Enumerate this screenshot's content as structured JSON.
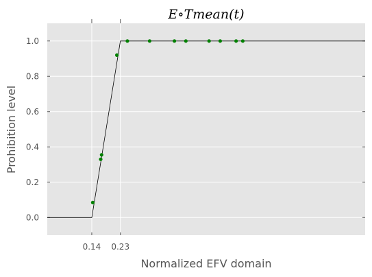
{
  "chart_data": {
    "type": "line",
    "title": "E∘Tmean(t)",
    "xlabel": "Normalized EFV domain",
    "ylabel": "Prohibition level",
    "xlim": [
      0,
      1
    ],
    "ylim": [
      -0.1,
      1.1
    ],
    "grid": true,
    "xticks": [
      0.14,
      0.23
    ],
    "xtick_labels": [
      "0.14",
      "0.23"
    ],
    "yticks": [
      0.0,
      0.2,
      0.4,
      0.6,
      0.8,
      1.0
    ],
    "ytick_labels": [
      "0.0",
      "0.2",
      "0.4",
      "0.6",
      "0.8",
      "1.0"
    ],
    "series": [
      {
        "kind": "line",
        "color": "#000000",
        "x": [
          0,
          0.14,
          0.23,
          1
        ],
        "y": [
          0,
          0,
          1,
          1
        ]
      },
      {
        "kind": "scatter",
        "color": "#008000",
        "x": [
          0.143,
          0.168,
          0.171,
          0.219,
          0.252,
          0.322,
          0.4,
          0.436,
          0.509,
          0.544,
          0.594,
          0.615
        ],
        "y": [
          0.085,
          0.33,
          0.355,
          0.92,
          1.0,
          1.0,
          1.0,
          1.0,
          1.0,
          1.0,
          1.0,
          1.0
        ]
      }
    ],
    "colors": {
      "plot_background": "#e5e5e5",
      "grid": "#ffffff",
      "tick_text": "#555555"
    }
  }
}
